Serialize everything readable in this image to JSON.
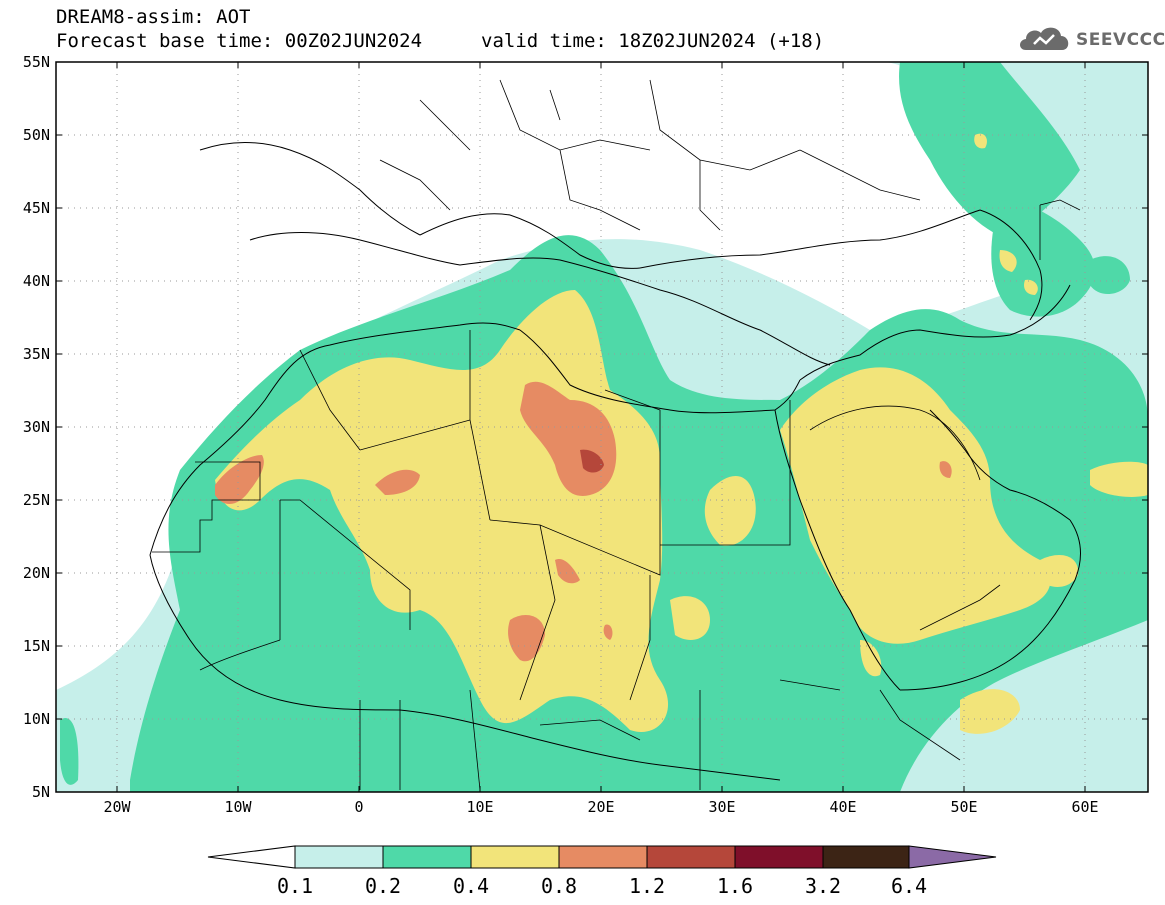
{
  "header": {
    "line1": "DREAM8-assim: AOT",
    "line2": "Forecast base time: 00Z02JUN2024",
    "valid": "valid time: 18Z02JUN2024 (+18)"
  },
  "logo": {
    "text": "SEEVCCC",
    "icon": "cloud-logo-icon",
    "color": "#6b6b6b"
  },
  "map": {
    "lon_range": [
      -25,
      65
    ],
    "lat_range": [
      5,
      55
    ],
    "lat_ticks": [
      "55N",
      "50N",
      "45N",
      "40N",
      "35N",
      "30N",
      "25N",
      "20N",
      "15N",
      "10N",
      "5N"
    ],
    "lon_ticks": [
      "20W",
      "10W",
      "0",
      "10E",
      "20E",
      "30E",
      "40E",
      "50E",
      "60E"
    ],
    "gridlines": "dotted",
    "colors": {
      "0.1-0.2": "#c6efea",
      "0.2-0.4": "#4fd9a8",
      "0.4-0.8": "#f2e47a",
      "0.8-1.2": "#e68b63",
      "1.2-1.6": "#b5473a",
      "1.6-3.2": "#7f0f2a",
      "3.2-6.4": "#3c2415",
      ">6.4": "#8b6aa6"
    }
  },
  "colorbar": {
    "labels": [
      "0.1",
      "0.2",
      "0.4",
      "0.8",
      "1.2",
      "1.6",
      "3.2",
      "6.4"
    ],
    "colors": [
      "#ffffff",
      "#c6efea",
      "#4fd9a8",
      "#f2e47a",
      "#e68b63",
      "#b5473a",
      "#7f0f2a",
      "#3c2415",
      "#8b6aa6"
    ]
  }
}
